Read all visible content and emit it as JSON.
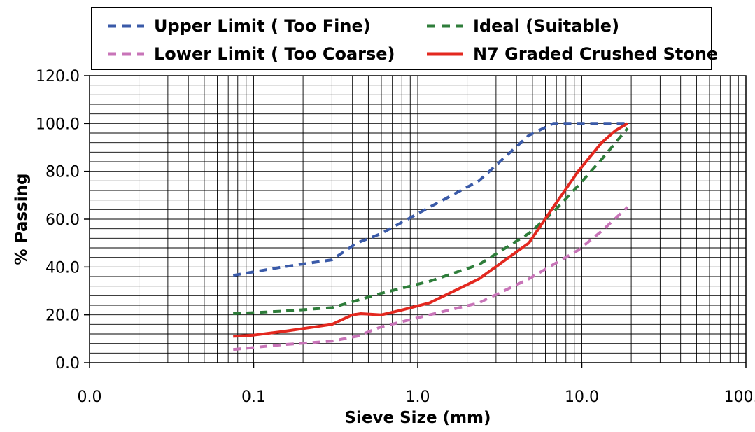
{
  "chart_data": {
    "type": "line",
    "title": "",
    "xlabel": "Sieve Size (mm)",
    "ylabel": "% Passing",
    "x_scale": "log",
    "xlim": [
      0.01,
      100
    ],
    "ylim": [
      0,
      120
    ],
    "x_tick_labels": [
      "0.0",
      "0.1",
      "1.0",
      "10.0",
      "100.0"
    ],
    "y_tick_labels": [
      "0.0",
      "20.0",
      "40.0",
      "60.0",
      "80.0",
      "100.0",
      "120.0"
    ],
    "grid": true,
    "legend_position": "top",
    "series": [
      {
        "name": "Upper Limit ( Too Fine)",
        "color": "#3a5aa8",
        "style": "dashed",
        "points": [
          [
            0.075,
            36.5
          ],
          [
            0.15,
            40
          ],
          [
            0.3,
            43
          ],
          [
            0.425,
            50
          ],
          [
            0.6,
            54
          ],
          [
            1.18,
            65
          ],
          [
            2.36,
            76
          ],
          [
            4.75,
            95
          ],
          [
            6.7,
            100
          ],
          [
            9.5,
            100
          ],
          [
            13.2,
            100
          ],
          [
            19,
            100
          ]
        ]
      },
      {
        "name": "Ideal (Suitable)",
        "color": "#2e7d3a",
        "style": "dashed",
        "points": [
          [
            0.075,
            20.5
          ],
          [
            0.15,
            21.5
          ],
          [
            0.3,
            23
          ],
          [
            0.425,
            26
          ],
          [
            0.6,
            29
          ],
          [
            1.18,
            34
          ],
          [
            2.36,
            41
          ],
          [
            4.75,
            54
          ],
          [
            6.7,
            63
          ],
          [
            9.5,
            74
          ],
          [
            13.2,
            85
          ],
          [
            19,
            98
          ]
        ]
      },
      {
        "name": "Lower Limit ( Too Coarse)",
        "color": "#c874b8",
        "style": "dashed",
        "points": [
          [
            0.075,
            5.5
          ],
          [
            0.15,
            7.5
          ],
          [
            0.3,
            9
          ],
          [
            0.425,
            11
          ],
          [
            0.6,
            15
          ],
          [
            1.18,
            20
          ],
          [
            2.36,
            25
          ],
          [
            4.75,
            35
          ],
          [
            6.7,
            41
          ],
          [
            9.5,
            47
          ],
          [
            13.2,
            55
          ],
          [
            19,
            65
          ]
        ]
      },
      {
        "name": "N7 Graded Crushed Stone",
        "color": "#e3281f",
        "style": "solid",
        "points": [
          [
            0.075,
            11
          ],
          [
            0.1,
            11.5
          ],
          [
            0.15,
            13
          ],
          [
            0.3,
            16
          ],
          [
            0.4,
            20
          ],
          [
            0.45,
            20.5
          ],
          [
            0.6,
            20
          ],
          [
            0.8,
            22
          ],
          [
            1.18,
            25
          ],
          [
            2.36,
            35
          ],
          [
            4.75,
            50
          ],
          [
            6.7,
            65
          ],
          [
            9.5,
            80
          ],
          [
            13.2,
            92
          ],
          [
            16,
            97
          ],
          [
            19,
            100
          ]
        ]
      }
    ]
  }
}
